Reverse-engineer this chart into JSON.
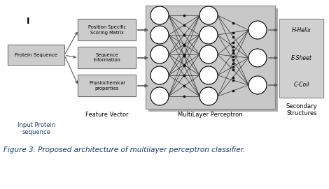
{
  "fig_width": 4.7,
  "fig_height": 2.71,
  "dpi": 100,
  "bg_color": "#ffffff",
  "caption": "Figure 3. Proposed architecture of multilayer perceptron classifier.",
  "caption_fontsize": 7.5,
  "caption_color": "#1a3a6b",
  "box_color": "#cccccc",
  "box_edge": "#666666",
  "mlp_bg": "#c8c8c8",
  "mlp_shadow": "#aaaaaa",
  "output_box_color": "#d0d0d0",
  "neuron_color": "#ffffff",
  "neuron_edge": "#000000",
  "label_color": "#000000",
  "label_fontsize": 5.0,
  "section_label_fontsize": 6.0,
  "input_label": "Input Protein\nsequence",
  "feature_label": "Feature Vector",
  "mlp_label": "MultiLayer Perceptron",
  "output_label": "Secondary\nStructures",
  "protein_box_text": "Protein Sequence",
  "feature_boxes": [
    "Position Specific\nScoring Matrix",
    "Sequence\nInformation",
    "Physiochemical\nproperties"
  ],
  "output_labels": [
    "H-Helix",
    "E-Sheet",
    "C-Coil"
  ],
  "i_label": "I"
}
